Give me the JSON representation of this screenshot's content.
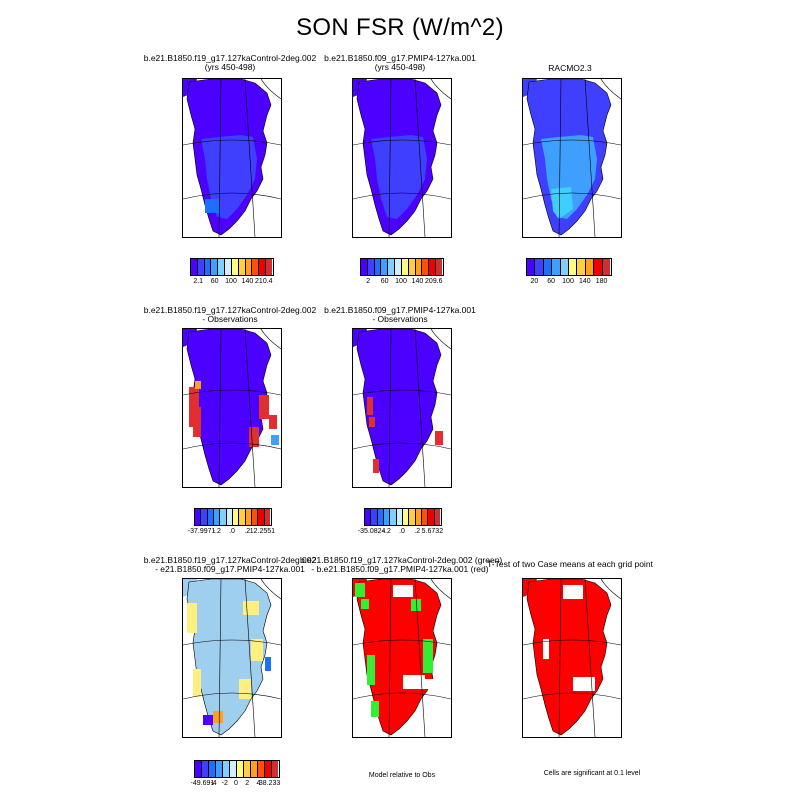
{
  "title": "SON FSR (W/m^2)",
  "palettes": {
    "rainbow": [
      "#4c00ff",
      "#3f3fff",
      "#1f6fff",
      "#3f9fff",
      "#7fcfff",
      "#cfefff",
      "#ffff7f",
      "#ffcf3f",
      "#ff9f1f",
      "#ff4f0f",
      "#ef0000",
      "#cf2f2f"
    ],
    "diverge": [
      "#4c00ff",
      "#3f3fff",
      "#1f6fff",
      "#3f9fff",
      "#7fcfff",
      "#cfefff",
      "#ffff7f",
      "#ffcf3f",
      "#ff9f1f",
      "#ff4f0f",
      "#ef0000",
      "#cf2f2f"
    ],
    "rainbow_short": [
      "#4c00ff",
      "#3f3fff",
      "#1f6fff",
      "#3f9fff",
      "#7fcfff",
      "#ffff7f",
      "#ffcf3f",
      "#ff9f1f",
      "#ef0000",
      "#cf2f2f"
    ]
  },
  "panels": [
    {
      "id": "p1",
      "title": [
        "b.e21.B1850.f19_g17.127kaControl-2deg.002",
        "(yrs 450-498)"
      ],
      "scheme": "abs_ctrl"
    },
    {
      "id": "p2",
      "title": [
        "b.e21.B1850.f09_g17.PMIP4-127ka.001",
        "(yrs 450-498)"
      ],
      "scheme": "abs_pmip"
    },
    {
      "id": "p3",
      "title": [
        "RACMO2.3"
      ],
      "scheme": "obs"
    },
    {
      "id": "p4",
      "title": [
        "b.e21.B1850.f19_g17.127kaControl-2deg.002",
        "- Observations"
      ],
      "scheme": "diff_ctrl"
    },
    {
      "id": "p5",
      "title": [
        "b.e21.B1850.f09_g17.PMIP4-127ka.001",
        "- Observations"
      ],
      "scheme": "diff_pmip"
    },
    {
      "id": "p7",
      "title": [
        "b.e21.B1850.f19_g17.127kaControl-2deg.002",
        "- e21.B1850.f09_g17.PMIP4-127ka.001"
      ],
      "scheme": "case_diff"
    },
    {
      "id": "p8",
      "title": [
        "b.e21.B1850.f19_g17.127kaControl-2deg.002 (green)",
        "- b.e21.B1850.f09_g17.PMIP4-127ka.001 (red)"
      ],
      "scheme": "rel_obs"
    },
    {
      "id": "p9",
      "title": [
        "T-Test of two Case means at each grid point"
      ],
      "scheme": "ttest"
    }
  ],
  "colorbars": [
    {
      "id": "cb1",
      "labels": [
        "2.1",
        "60",
        "100",
        "140",
        "210.4"
      ]
    },
    {
      "id": "cb2",
      "labels": [
        "2",
        "60",
        "100",
        "140",
        "209.6"
      ]
    },
    {
      "id": "cb3",
      "labels": [
        "20",
        "60",
        "100",
        "140",
        "180"
      ]
    },
    {
      "id": "cb4",
      "labels": [
        "-37.9971",
        "-.2",
        ".0",
        ".2",
        "12.2551"
      ]
    },
    {
      "id": "cb5",
      "labels": [
        "-35.0824",
        "-.2",
        ".0",
        ".2",
        "5.6732"
      ]
    },
    {
      "id": "cb7",
      "labels": [
        "-49.691",
        "-4",
        "-2",
        "0",
        "2",
        "4",
        "38.233"
      ]
    }
  ],
  "notes": {
    "rel_obs": "Model relative to Obs",
    "significance": "Cells are significant at 0.1 level"
  },
  "chart_data": {
    "type": "heatmap",
    "title": "SON FSR (W/m^2)",
    "variable": "FSR",
    "season": "SON",
    "units": "W/m^2",
    "panels": [
      {
        "title": "b.e21.B1850.f19_g17.127kaControl-2deg.002 (yrs 450-498)",
        "min": 2.1,
        "max": 210.4,
        "ticks": [
          2.1,
          60,
          100,
          140,
          210.4
        ]
      },
      {
        "title": "b.e21.B1850.f09_g17.PMIP4-127ka.001 (yrs 450-498)",
        "min": 2,
        "max": 209.6,
        "ticks": [
          2,
          60,
          100,
          140,
          209.6
        ]
      },
      {
        "title": "RACMO2.3",
        "ticks": [
          20,
          60,
          100,
          140,
          180
        ]
      },
      {
        "title": "b.e21.B1850.f19_g17.127kaControl-2deg.002 - Observations",
        "min": -37.9971,
        "max": 12.2551,
        "ticks": [
          -37.9971,
          -0.2,
          0.0,
          0.2,
          12.2551
        ]
      },
      {
        "title": "b.e21.B1850.f09_g17.PMIP4-127ka.001 - Observations",
        "min": -35.0824,
        "max": 5.6732,
        "ticks": [
          -35.0824,
          -0.2,
          0.0,
          0.2,
          5.6732
        ]
      },
      {
        "title": "b.e21.B1850.f19_g17.127kaControl-2deg.002 - e21.B1850.f09_g17.PMIP4-127ka.001",
        "min": -49.691,
        "max": 38.233,
        "ticks": [
          -49.691,
          -4,
          -2,
          0,
          2,
          4,
          38.233
        ]
      },
      {
        "title": "b.e21.B1850.f19_g17.127kaControl-2deg.002 (green) - b.e21.B1850.f09_g17.PMIP4-127ka.001 (red)",
        "note": "Model relative to Obs"
      },
      {
        "title": "T-Test of two Case means at each grid point",
        "note": "Cells are significant at 0.1 level"
      }
    ]
  }
}
